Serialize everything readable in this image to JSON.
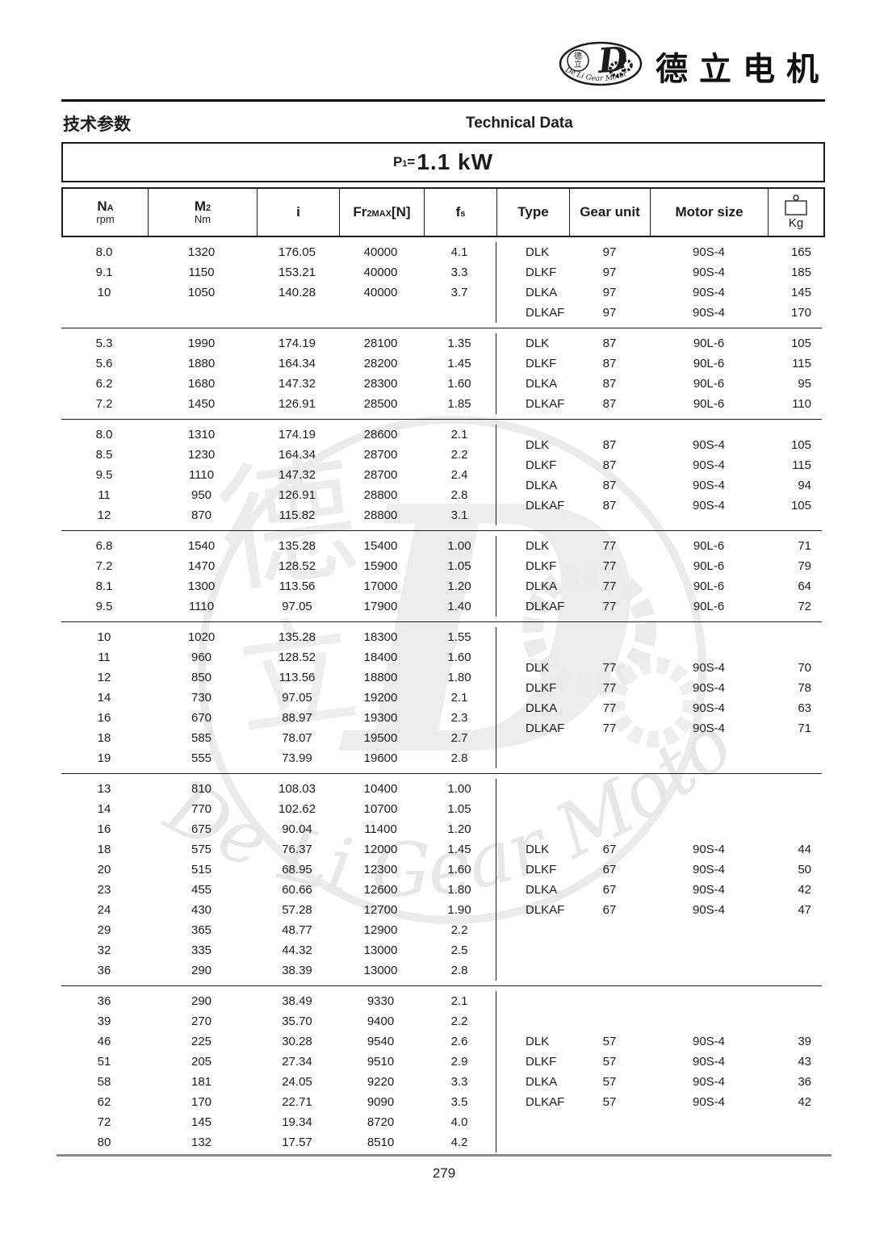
{
  "brand": {
    "name_cn": "德立电机",
    "logo_inner_cn": "德立",
    "logo_letter": "D",
    "logo_ring_text": "De Li Gear Motor"
  },
  "section": {
    "title_cn": "技术参数",
    "title_en": "Technical Data"
  },
  "power": {
    "label": "P",
    "label_sub": "1",
    "equals": "=",
    "value": "1.1 kW"
  },
  "table": {
    "columns": [
      {
        "main": "N",
        "sub": "A",
        "unit": "rpm"
      },
      {
        "main": "M",
        "sub": "2",
        "unit": "Nm"
      },
      {
        "main": "i",
        "sub": "",
        "unit": ""
      },
      {
        "main": "Fr",
        "sub": "2MAX",
        "suffix": "[N]",
        "unit": ""
      },
      {
        "main": "f",
        "sub": "s",
        "unit": ""
      },
      {
        "label": "Type"
      },
      {
        "label": "Gear unit"
      },
      {
        "label": "Motor size"
      },
      {
        "label": "Kg",
        "icon": "weight-icon"
      }
    ],
    "blocks": [
      {
        "left": [
          [
            "8.0",
            "1320",
            "176.05",
            "40000",
            "4.1"
          ],
          [
            "9.1",
            "1150",
            "153.21",
            "40000",
            "3.3"
          ],
          [
            "10",
            "1050",
            "140.28",
            "40000",
            "3.7"
          ],
          [
            "",
            "",
            "",
            "",
            ""
          ]
        ],
        "right": [
          [
            "DLK",
            "97",
            "90S-4",
            "165"
          ],
          [
            "DLKF",
            "97",
            "90S-4",
            "185"
          ],
          [
            "DLKA",
            "97",
            "90S-4",
            "145"
          ],
          [
            "DLKAF",
            "97",
            "90S-4",
            "170"
          ]
        ]
      },
      {
        "left": [
          [
            "5.3",
            "1990",
            "174.19",
            "28100",
            "1.35"
          ],
          [
            "5.6",
            "1880",
            "164.34",
            "28200",
            "1.45"
          ],
          [
            "6.2",
            "1680",
            "147.32",
            "28300",
            "1.60"
          ],
          [
            "7.2",
            "1450",
            "126.91",
            "28500",
            "1.85"
          ]
        ],
        "right": [
          [
            "DLK",
            "87",
            "90L-6",
            "105"
          ],
          [
            "DLKF",
            "87",
            "90L-6",
            "115"
          ],
          [
            "DLKA",
            "87",
            "90L-6",
            "95"
          ],
          [
            "DLKAF",
            "87",
            "90L-6",
            "110"
          ]
        ]
      },
      {
        "left": [
          [
            "8.0",
            "1310",
            "174.19",
            "28600",
            "2.1"
          ],
          [
            "8.5",
            "1230",
            "164.34",
            "28700",
            "2.2"
          ],
          [
            "9.5",
            "1110",
            "147.32",
            "28700",
            "2.4"
          ],
          [
            "11",
            "950",
            "126.91",
            "28800",
            "2.8"
          ],
          [
            "12",
            "870",
            "115.82",
            "28800",
            "3.1"
          ]
        ],
        "right": [
          [
            "DLK",
            "87",
            "90S-4",
            "105"
          ],
          [
            "DLKF",
            "87",
            "90S-4",
            "115"
          ],
          [
            "DLKA",
            "87",
            "90S-4",
            "94"
          ],
          [
            "DLKAF",
            "87",
            "90S-4",
            "105"
          ]
        ]
      },
      {
        "left": [
          [
            "6.8",
            "1540",
            "135.28",
            "15400",
            "1.00"
          ],
          [
            "7.2",
            "1470",
            "128.52",
            "15900",
            "1.05"
          ],
          [
            "8.1",
            "1300",
            "113.56",
            "17000",
            "1.20"
          ],
          [
            "9.5",
            "1110",
            "97.05",
            "17900",
            "1.40"
          ]
        ],
        "right": [
          [
            "DLK",
            "77",
            "90L-6",
            "71"
          ],
          [
            "DLKF",
            "77",
            "90L-6",
            "79"
          ],
          [
            "DLKA",
            "77",
            "90L-6",
            "64"
          ],
          [
            "DLKAF",
            "77",
            "90L-6",
            "72"
          ]
        ]
      },
      {
        "left": [
          [
            "10",
            "1020",
            "135.28",
            "18300",
            "1.55"
          ],
          [
            "11",
            "960",
            "128.52",
            "18400",
            "1.60"
          ],
          [
            "12",
            "850",
            "113.56",
            "18800",
            "1.80"
          ],
          [
            "14",
            "730",
            "97.05",
            "19200",
            "2.1"
          ],
          [
            "16",
            "670",
            "88.97",
            "19300",
            "2.3"
          ],
          [
            "18",
            "585",
            "78.07",
            "19500",
            "2.7"
          ],
          [
            "19",
            "555",
            "73.99",
            "19600",
            "2.8"
          ]
        ],
        "right": [
          [
            "DLK",
            "77",
            "90S-4",
            "70"
          ],
          [
            "DLKF",
            "77",
            "90S-4",
            "78"
          ],
          [
            "DLKA",
            "77",
            "90S-4",
            "63"
          ],
          [
            "DLKAF",
            "77",
            "90S-4",
            "71"
          ]
        ]
      },
      {
        "left": [
          [
            "13",
            "810",
            "108.03",
            "10400",
            "1.00"
          ],
          [
            "14",
            "770",
            "102.62",
            "10700",
            "1.05"
          ],
          [
            "16",
            "675",
            "90.04",
            "11400",
            "1.20"
          ],
          [
            "18",
            "575",
            "76.37",
            "12000",
            "1.45"
          ],
          [
            "20",
            "515",
            "68.95",
            "12300",
            "1.60"
          ],
          [
            "23",
            "455",
            "60.66",
            "12600",
            "1.80"
          ],
          [
            "24",
            "430",
            "57.28",
            "12700",
            "1.90"
          ],
          [
            "29",
            "365",
            "48.77",
            "12900",
            "2.2"
          ],
          [
            "32",
            "335",
            "44.32",
            "13000",
            "2.5"
          ],
          [
            "36",
            "290",
            "38.39",
            "13000",
            "2.8"
          ]
        ],
        "right": [
          [
            "DLK",
            "67",
            "90S-4",
            "44"
          ],
          [
            "DLKF",
            "67",
            "90S-4",
            "50"
          ],
          [
            "DLKA",
            "67",
            "90S-4",
            "42"
          ],
          [
            "DLKAF",
            "67",
            "90S-4",
            "47"
          ]
        ]
      },
      {
        "left": [
          [
            "36",
            "290",
            "38.49",
            "9330",
            "2.1"
          ],
          [
            "39",
            "270",
            "35.70",
            "9400",
            "2.2"
          ],
          [
            "46",
            "225",
            "30.28",
            "9540",
            "2.6"
          ],
          [
            "51",
            "205",
            "27.34",
            "9510",
            "2.9"
          ],
          [
            "58",
            "181",
            "24.05",
            "9220",
            "3.3"
          ],
          [
            "62",
            "170",
            "22.71",
            "9090",
            "3.5"
          ],
          [
            "72",
            "145",
            "19.34",
            "8720",
            "4.0"
          ],
          [
            "80",
            "132",
            "17.57",
            "8510",
            "4.2"
          ]
        ],
        "right": [
          [
            "DLK",
            "57",
            "90S-4",
            "39"
          ],
          [
            "DLKF",
            "57",
            "90S-4",
            "43"
          ],
          [
            "DLKA",
            "57",
            "90S-4",
            "36"
          ],
          [
            "DLKAF",
            "57",
            "90S-4",
            "42"
          ]
        ]
      }
    ]
  },
  "footer": {
    "page_number": "279"
  }
}
